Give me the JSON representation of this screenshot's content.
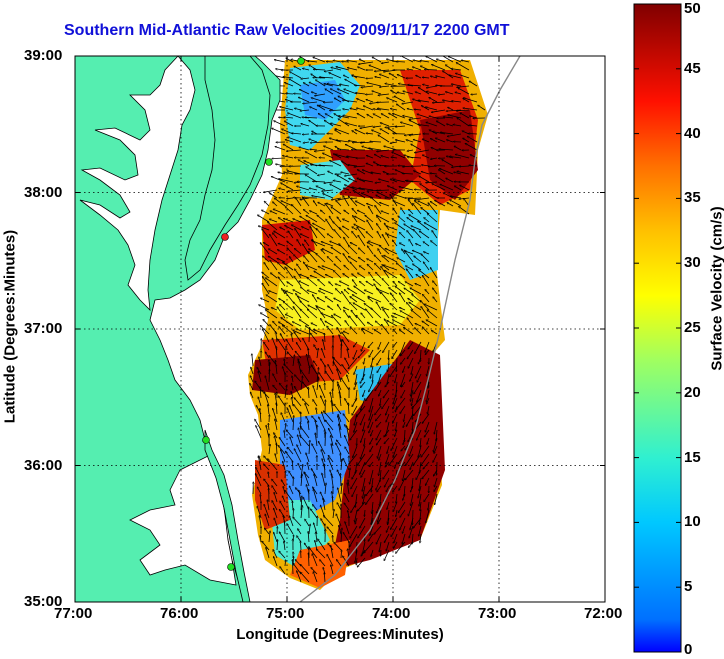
{
  "title": "Southern Mid-Atlantic Raw Velocities 2009/11/17 2200 GMT",
  "xlabel": "Longitude (Degrees:Minutes)",
  "ylabel": "Latitude (Degrees:Minutes)",
  "colorbar_label": "Surface Velocity (cm/s)",
  "x_ticks": [
    {
      "value": -77,
      "label": "77:00"
    },
    {
      "value": -76,
      "label": "76:00"
    },
    {
      "value": -75,
      "label": "75:00"
    },
    {
      "value": -74,
      "label": "74:00"
    },
    {
      "value": -73,
      "label": "73:00"
    },
    {
      "value": -72,
      "label": "72:00"
    }
  ],
  "y_ticks": [
    {
      "value": 35,
      "label": "35:00"
    },
    {
      "value": 36,
      "label": "36:00"
    },
    {
      "value": 37,
      "label": "37:00"
    },
    {
      "value": 38,
      "label": "38:00"
    },
    {
      "value": 39,
      "label": "39:00"
    }
  ],
  "colorbar_ticks": [
    {
      "value": 0,
      "label": "0"
    },
    {
      "value": 5,
      "label": "5"
    },
    {
      "value": 10,
      "label": "10"
    },
    {
      "value": 15,
      "label": "15"
    },
    {
      "value": 20,
      "label": "20"
    },
    {
      "value": 25,
      "label": "25"
    },
    {
      "value": 30,
      "label": "30"
    },
    {
      "value": 35,
      "label": "35"
    },
    {
      "value": 40,
      "label": "40"
    },
    {
      "value": 45,
      "label": "45"
    },
    {
      "value": 50,
      "label": "50"
    }
  ],
  "chart_data": {
    "type": "heatmap",
    "xlim": [
      -77,
      -72
    ],
    "ylim": [
      35,
      39
    ],
    "clim": [
      0,
      50
    ],
    "grid": true,
    "land_color": "#55eeb0",
    "colormap": "jet"
  }
}
